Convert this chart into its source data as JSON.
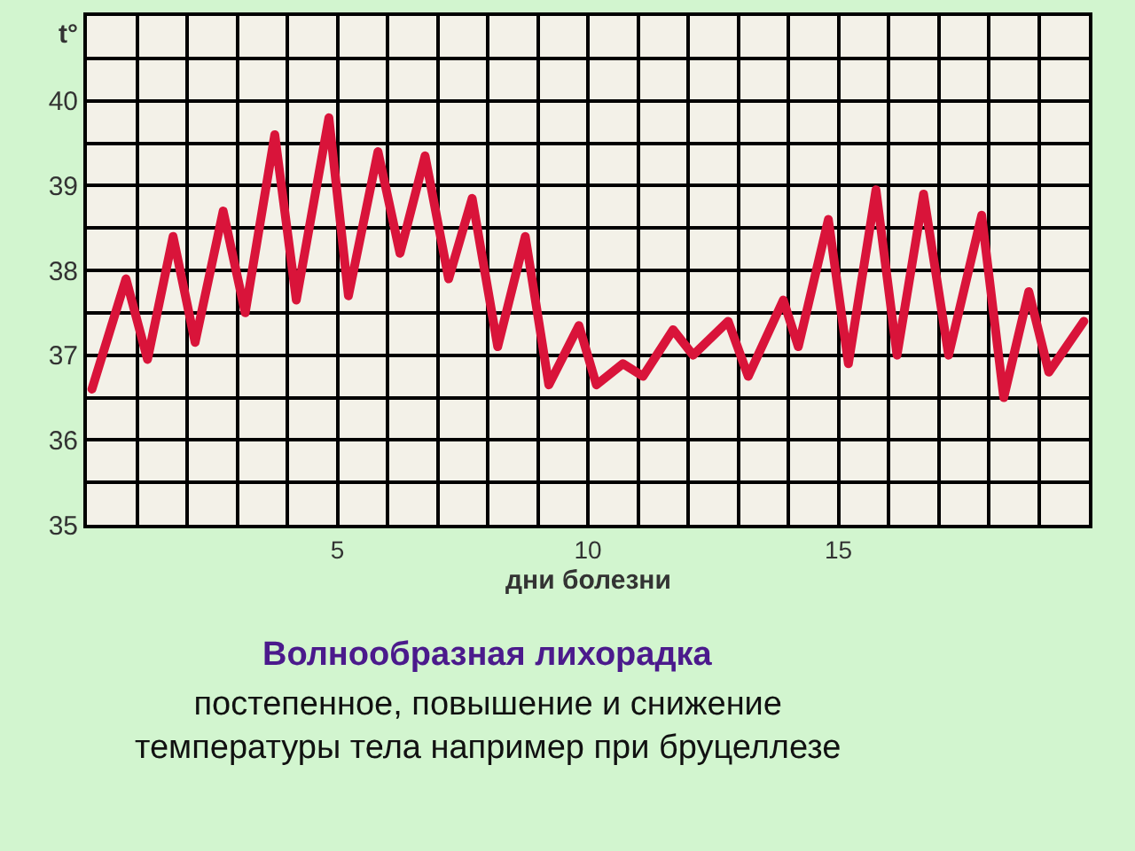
{
  "chart_data": {
    "type": "line",
    "title": "Волнообразная лихорадка",
    "subtitle": "постепенное, повышение и снижение\nтемпературы тела например при бруцеллезе",
    "xlabel": "дни болезни",
    "ylabel": "t°",
    "x": [
      0.1,
      0.78,
      1.21,
      1.72,
      2.16,
      2.72,
      3.16,
      3.75,
      4.18,
      4.83,
      5.22,
      5.81,
      6.25,
      6.75,
      7.22,
      7.69,
      8.2,
      8.75,
      9.22,
      9.82,
      10.17,
      10.7,
      11.1,
      11.7,
      12.1,
      12.8,
      13.2,
      13.9,
      14.2,
      14.8,
      15.2,
      15.75,
      16.17,
      16.7,
      17.2,
      17.86,
      18.3,
      18.8,
      19.2,
      19.9
    ],
    "series": [
      {
        "color": "#d9143a",
        "values": [
          36.6,
          37.9,
          36.95,
          38.4,
          37.15,
          38.7,
          37.5,
          39.6,
          37.65,
          39.8,
          37.7,
          39.4,
          38.2,
          39.35,
          37.9,
          38.85,
          37.1,
          38.4,
          36.65,
          37.35,
          36.65,
          36.9,
          36.75,
          37.3,
          37.0,
          37.4,
          36.75,
          37.65,
          37.1,
          38.6,
          36.9,
          38.95,
          37.0,
          38.9,
          37.0,
          38.65,
          36.5,
          37.75,
          36.8,
          37.4
        ]
      }
    ],
    "xlim": [
      0,
      20
    ],
    "xticks": [
      {
        "value": 1,
        "label": null
      },
      {
        "value": 2,
        "label": null
      },
      {
        "value": 3,
        "label": null
      },
      {
        "value": 4,
        "label": null
      },
      5,
      {
        "value": 6,
        "label": null
      },
      {
        "value": 7,
        "label": null
      },
      {
        "value": 8,
        "label": null
      },
      {
        "value": 9,
        "label": null
      },
      10,
      {
        "value": 11,
        "label": null
      },
      {
        "value": 12,
        "label": null
      },
      {
        "value": 13,
        "label": null
      },
      {
        "value": 14,
        "label": null
      },
      15,
      {
        "value": 16,
        "label": null
      },
      {
        "value": 17,
        "label": null
      },
      {
        "value": 18,
        "label": null
      },
      {
        "value": 19,
        "label": null
      }
    ],
    "ylim": [
      35,
      41
    ],
    "yticks": [
      35,
      {
        "value": 35.5,
        "label": null
      },
      36,
      {
        "value": 36.5,
        "label": null
      },
      37,
      {
        "value": 37.5,
        "label": null
      },
      38,
      {
        "value": 38.5,
        "label": null
      },
      39,
      {
        "value": 39.5,
        "label": null
      },
      40,
      {
        "value": 40.5,
        "label": null
      }
    ],
    "grid": true,
    "legend": false,
    "marker": "none",
    "line_style": "solid"
  }
}
